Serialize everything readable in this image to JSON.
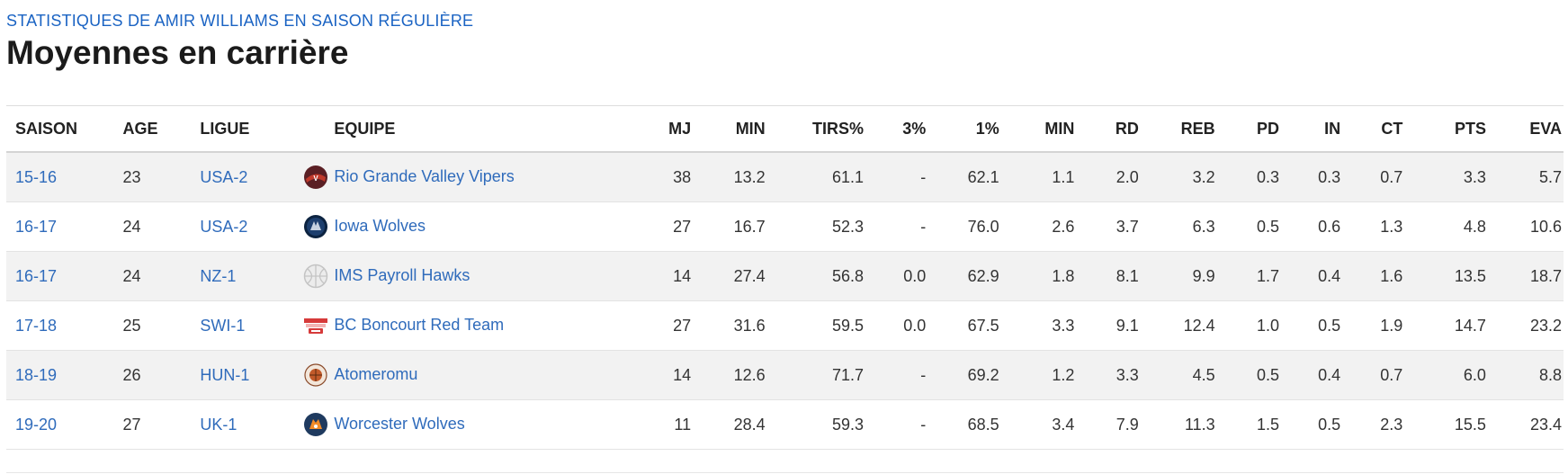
{
  "header": {
    "subtitle": "STATISTIQUES DE AMIR WILLIAMS EN SAISON RÉGULIÈRE",
    "title": "Moyennes en carrière"
  },
  "columns": [
    "SAISON",
    "AGE",
    "LIGUE",
    "EQUIPE",
    "MJ",
    "MIN",
    "TIRS%",
    "3%",
    "1%",
    "MIN",
    "RD",
    "REB",
    "PD",
    "IN",
    "CT",
    "PTS",
    "EVA"
  ],
  "rows": [
    {
      "season": "15-16",
      "age": "23",
      "league": "USA-2",
      "team": "Rio Grande Valley Vipers",
      "logo": "vipers-logo-icon",
      "mj": "38",
      "min": "13.2",
      "tirs": "61.1",
      "three": "-",
      "one": "62.1",
      "min2": "1.1",
      "rd": "2.0",
      "reb": "3.2",
      "pd": "0.3",
      "in": "0.3",
      "ct": "0.7",
      "pts": "3.3",
      "eva": "5.7"
    },
    {
      "season": "16-17",
      "age": "24",
      "league": "USA-2",
      "team": "Iowa Wolves",
      "logo": "iowa-wolves-logo-icon",
      "mj": "27",
      "min": "16.7",
      "tirs": "52.3",
      "three": "-",
      "one": "76.0",
      "min2": "2.6",
      "rd": "3.7",
      "reb": "6.3",
      "pd": "0.5",
      "in": "0.6",
      "ct": "1.3",
      "pts": "4.8",
      "eva": "10.6"
    },
    {
      "season": "16-17",
      "age": "24",
      "league": "NZ-1",
      "team": "IMS Payroll Hawks",
      "logo": "basketball-placeholder-icon",
      "mj": "14",
      "min": "27.4",
      "tirs": "56.8",
      "three": "0.0",
      "one": "62.9",
      "min2": "1.8",
      "rd": "8.1",
      "reb": "9.9",
      "pd": "1.7",
      "in": "0.4",
      "ct": "1.6",
      "pts": "13.5",
      "eva": "18.7"
    },
    {
      "season": "17-18",
      "age": "25",
      "league": "SWI-1",
      "team": "BC Boncourt Red Team",
      "logo": "boncourt-logo-icon",
      "mj": "27",
      "min": "31.6",
      "tirs": "59.5",
      "three": "0.0",
      "one": "67.5",
      "min2": "3.3",
      "rd": "9.1",
      "reb": "12.4",
      "pd": "1.0",
      "in": "0.5",
      "ct": "1.9",
      "pts": "14.7",
      "eva": "23.2"
    },
    {
      "season": "18-19",
      "age": "26",
      "league": "HUN-1",
      "team": "Atomeromu",
      "logo": "atomeromu-logo-icon",
      "mj": "14",
      "min": "12.6",
      "tirs": "71.7",
      "three": "-",
      "one": "69.2",
      "min2": "1.2",
      "rd": "3.3",
      "reb": "4.5",
      "pd": "0.5",
      "in": "0.4",
      "ct": "0.7",
      "pts": "6.0",
      "eva": "8.8"
    },
    {
      "season": "19-20",
      "age": "27",
      "league": "UK-1",
      "team": "Worcester Wolves",
      "logo": "worcester-wolves-logo-icon",
      "mj": "11",
      "min": "28.4",
      "tirs": "59.3",
      "three": "-",
      "one": "68.5",
      "min2": "3.4",
      "rd": "7.9",
      "reb": "11.3",
      "pd": "1.5",
      "in": "0.5",
      "ct": "2.3",
      "pts": "15.5",
      "eva": "23.4"
    }
  ],
  "colors": {
    "link": "#2f6bbb",
    "subtitle": "#1a63c3",
    "stripe": "#f2f2f2"
  }
}
